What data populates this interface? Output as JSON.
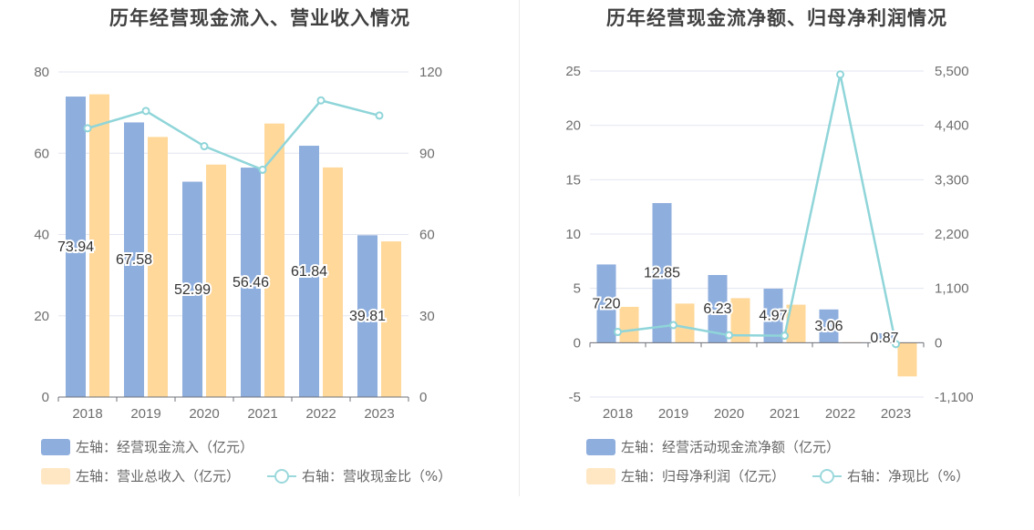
{
  "colors": {
    "bar_primary": "#8eaedd",
    "bar_secondary": "#ffd89a",
    "line": "#8fd5d9",
    "grid": "#e3e6f0",
    "axis_text": "#6e6e6e"
  },
  "chart_data": [
    {
      "type": "bar",
      "title": "历年经营现金流入、营业收入情况",
      "categories": [
        "2018",
        "2019",
        "2020",
        "2021",
        "2022",
        "2023"
      ],
      "y_left": {
        "ticks": [
          0,
          20,
          40,
          60,
          80
        ],
        "lim": [
          0,
          80
        ]
      },
      "y_right": {
        "ticks": [
          0,
          30,
          60,
          90,
          120
        ],
        "lim": [
          0,
          120
        ]
      },
      "series": [
        {
          "name": "左轴：经营现金流入（亿元）",
          "type": "bar",
          "axis": "left",
          "values": [
            73.94,
            67.58,
            52.99,
            56.46,
            61.84,
            39.81
          ],
          "labels": [
            "73.94",
            "67.58",
            "52.99",
            "56.46",
            "61.84",
            "39.81"
          ]
        },
        {
          "name": "左轴：营业总收入（亿元）",
          "type": "bar",
          "axis": "left",
          "values": [
            74.5,
            64.0,
            57.2,
            67.3,
            56.5,
            38.3
          ]
        },
        {
          "name": "右轴：营收现金比（%）",
          "type": "line",
          "axis": "right",
          "values": [
            99.2,
            105.6,
            92.6,
            83.9,
            109.5,
            103.9
          ]
        }
      ]
    },
    {
      "type": "bar",
      "title": "历年经营现金流净额、归母净利润情况",
      "categories": [
        "2018",
        "2019",
        "2020",
        "2021",
        "2022",
        "2023"
      ],
      "y_left": {
        "ticks": [
          -5,
          0,
          5,
          10,
          15,
          20,
          25
        ],
        "lim": [
          -5,
          25
        ]
      },
      "y_right": {
        "ticks": [
          "-1,100",
          "0",
          "1,100",
          "2,200",
          "3,300",
          "4,400",
          "5,500"
        ],
        "tick_values": [
          -1100,
          0,
          1100,
          2200,
          3300,
          4400,
          5500
        ],
        "lim": [
          -1100,
          5500
        ]
      },
      "series": [
        {
          "name": "左轴：经营活动现金流净额（亿元）",
          "type": "bar",
          "axis": "left",
          "values": [
            7.2,
            12.85,
            6.23,
            4.97,
            3.06,
            0.87
          ],
          "labels": [
            "7.20",
            "12.85",
            "6.23",
            "4.97",
            "3.06",
            "0.87"
          ]
        },
        {
          "name": "左轴：归母净利润（亿元）",
          "type": "bar",
          "axis": "left",
          "values": [
            3.3,
            3.6,
            4.1,
            3.5,
            0.05,
            -3.1
          ]
        },
        {
          "name": "右轴：净现比（%）",
          "type": "line",
          "axis": "right",
          "values": [
            218,
            357,
            152,
            142,
            5430,
            -28
          ]
        }
      ]
    }
  ]
}
